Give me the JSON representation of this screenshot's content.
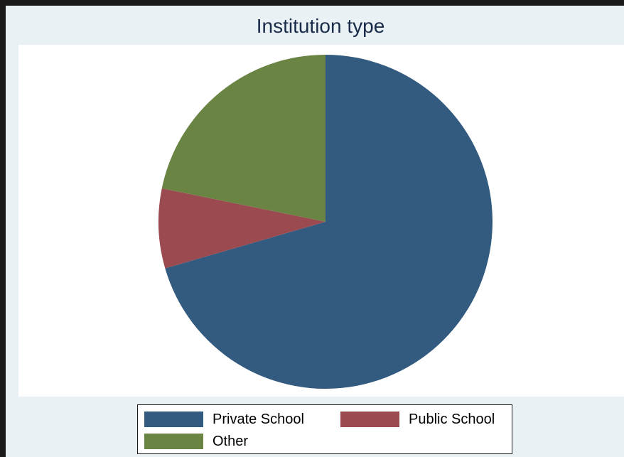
{
  "chart_data": {
    "type": "pie",
    "title": "Institution type",
    "slices": [
      {
        "label": "Private School",
        "value": 70.5,
        "color": "#335b80"
      },
      {
        "label": "Public School",
        "value": 7.7,
        "color": "#9b4a50"
      },
      {
        "label": "Other",
        "value": 21.8,
        "color": "#6a8444"
      }
    ],
    "legend_position": "bottom",
    "legend_columns": 2,
    "start_angle_deg": 0,
    "direction": "clockwise"
  }
}
